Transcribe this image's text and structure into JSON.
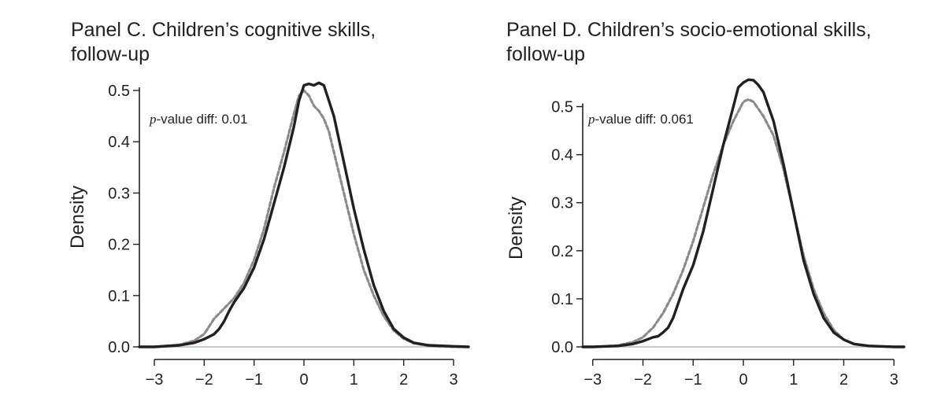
{
  "chart_data": [
    {
      "type": "line",
      "title_line1": "Panel C. Children’s cognitive skills,",
      "title_line2": "follow-up",
      "ylabel": "Density",
      "xlabel": "",
      "xlim": [
        -3.3,
        3.3
      ],
      "ylim": [
        0,
        0.52
      ],
      "xticks": [
        -3,
        -2,
        -1,
        0,
        1,
        2,
        3
      ],
      "xtick_labels": [
        "−3",
        "−2",
        "−1",
        "0",
        "1",
        "2",
        "3"
      ],
      "yticks": [
        0.0,
        0.1,
        0.2,
        0.3,
        0.4,
        0.5
      ],
      "ytick_labels": [
        "0.0",
        "0.1",
        "0.2",
        "0.3",
        "0.4",
        "0.5"
      ],
      "annotation": {
        "p": "p",
        "text": "-value diff: 0.01"
      },
      "grid": false,
      "series": [
        {
          "style": "solid",
          "color": "#231f20",
          "x": [
            -3.3,
            -3.0,
            -2.5,
            -2.2,
            -2.0,
            -1.9,
            -1.8,
            -1.7,
            -1.6,
            -1.5,
            -1.4,
            -1.2,
            -1.0,
            -0.8,
            -0.6,
            -0.4,
            -0.2,
            -0.1,
            0.0,
            0.1,
            0.2,
            0.3,
            0.4,
            0.5,
            0.6,
            0.8,
            1.0,
            1.2,
            1.4,
            1.6,
            1.8,
            2.0,
            2.2,
            2.5,
            3.0,
            3.3
          ],
          "y": [
            0.0,
            0.0,
            0.003,
            0.008,
            0.015,
            0.02,
            0.025,
            0.035,
            0.05,
            0.07,
            0.087,
            0.115,
            0.155,
            0.21,
            0.28,
            0.35,
            0.43,
            0.48,
            0.51,
            0.513,
            0.51,
            0.515,
            0.51,
            0.48,
            0.45,
            0.36,
            0.27,
            0.19,
            0.12,
            0.07,
            0.035,
            0.018,
            0.008,
            0.003,
            0.001,
            0.0
          ]
        },
        {
          "style": "dashed",
          "color": "#8a8a8a",
          "x": [
            -3.3,
            -3.0,
            -2.5,
            -2.2,
            -2.0,
            -1.9,
            -1.8,
            -1.6,
            -1.4,
            -1.2,
            -1.0,
            -0.8,
            -0.6,
            -0.4,
            -0.2,
            -0.1,
            0.0,
            0.1,
            0.2,
            0.3,
            0.4,
            0.5,
            0.6,
            0.8,
            1.0,
            1.2,
            1.4,
            1.6,
            1.8,
            2.0,
            2.2,
            2.5,
            3.0,
            3.3
          ],
          "y": [
            0.0,
            0.0,
            0.004,
            0.012,
            0.025,
            0.04,
            0.055,
            0.075,
            0.095,
            0.125,
            0.17,
            0.23,
            0.31,
            0.38,
            0.455,
            0.49,
            0.5,
            0.49,
            0.47,
            0.46,
            0.445,
            0.42,
            0.38,
            0.3,
            0.22,
            0.15,
            0.1,
            0.06,
            0.032,
            0.016,
            0.007,
            0.002,
            0.0,
            0.0
          ]
        }
      ]
    },
    {
      "type": "line",
      "title_line1": "Panel D. Children’s socio-emotional skills,",
      "title_line2": "follow-up",
      "ylabel": "Density",
      "xlabel": "",
      "xlim": [
        -3.2,
        3.2
      ],
      "ylim": [
        0,
        0.55
      ],
      "xticks": [
        -3,
        -2,
        -1,
        0,
        1,
        2,
        3
      ],
      "xtick_labels": [
        "−3",
        "−2",
        "−1",
        "0",
        "1",
        "2",
        "3"
      ],
      "yticks": [
        0.0,
        0.1,
        0.2,
        0.3,
        0.4,
        0.5
      ],
      "ytick_labels": [
        "0.0",
        "0.1",
        "0.2",
        "0.3",
        "0.4",
        "0.5"
      ],
      "annotation": {
        "p": "p",
        "text": "-value diff: 0.061"
      },
      "grid": false,
      "series": [
        {
          "style": "solid",
          "color": "#231f20",
          "x": [
            -3.2,
            -3.0,
            -2.5,
            -2.2,
            -2.0,
            -1.8,
            -1.7,
            -1.6,
            -1.5,
            -1.4,
            -1.2,
            -1.0,
            -0.8,
            -0.6,
            -0.4,
            -0.2,
            -0.1,
            0.0,
            0.1,
            0.2,
            0.3,
            0.4,
            0.6,
            0.8,
            1.0,
            1.2,
            1.4,
            1.6,
            1.8,
            2.0,
            2.2,
            2.5,
            3.0,
            3.2
          ],
          "y": [
            0.0,
            0.0,
            0.002,
            0.006,
            0.012,
            0.02,
            0.022,
            0.03,
            0.04,
            0.06,
            0.12,
            0.17,
            0.24,
            0.33,
            0.42,
            0.5,
            0.54,
            0.55,
            0.556,
            0.555,
            0.545,
            0.53,
            0.47,
            0.38,
            0.28,
            0.18,
            0.11,
            0.06,
            0.03,
            0.015,
            0.006,
            0.002,
            0.0,
            0.0
          ]
        },
        {
          "style": "dashed",
          "color": "#8a8a8a",
          "x": [
            -3.2,
            -3.0,
            -2.5,
            -2.2,
            -2.0,
            -1.8,
            -1.6,
            -1.4,
            -1.2,
            -1.0,
            -0.8,
            -0.6,
            -0.4,
            -0.2,
            0.0,
            0.1,
            0.2,
            0.4,
            0.6,
            0.8,
            1.0,
            1.2,
            1.4,
            1.6,
            1.8,
            2.0,
            2.2,
            2.5,
            3.0,
            3.2
          ],
          "y": [
            0.0,
            0.0,
            0.003,
            0.01,
            0.02,
            0.04,
            0.07,
            0.11,
            0.16,
            0.22,
            0.29,
            0.36,
            0.42,
            0.47,
            0.51,
            0.515,
            0.51,
            0.48,
            0.44,
            0.37,
            0.28,
            0.19,
            0.12,
            0.07,
            0.035,
            0.015,
            0.006,
            0.002,
            0.0,
            0.0
          ]
        }
      ]
    }
  ]
}
